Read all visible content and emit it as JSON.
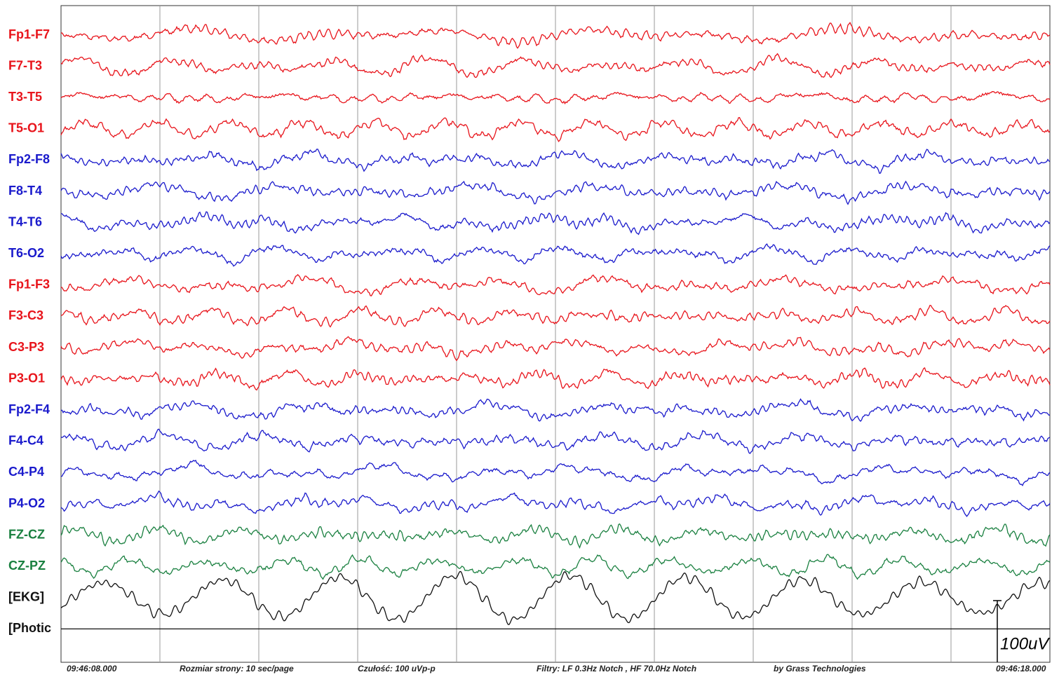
{
  "channels": [
    {
      "label": "Fp1-F7",
      "color": "#e8141b"
    },
    {
      "label": "F7-T3",
      "color": "#e8141b"
    },
    {
      "label": "T3-T5",
      "color": "#e8141b"
    },
    {
      "label": "T5-O1",
      "color": "#e8141b"
    },
    {
      "label": "Fp2-F8",
      "color": "#1a1acc"
    },
    {
      "label": "F8-T4",
      "color": "#1a1acc"
    },
    {
      "label": "T4-T6",
      "color": "#1a1acc"
    },
    {
      "label": "T6-O2",
      "color": "#1a1acc"
    },
    {
      "label": "Fp1-F3",
      "color": "#e8141b"
    },
    {
      "label": "F3-C3",
      "color": "#e8141b"
    },
    {
      "label": "C3-P3",
      "color": "#e8141b"
    },
    {
      "label": "P3-O1",
      "color": "#e8141b"
    },
    {
      "label": "Fp2-F4",
      "color": "#1a1acc"
    },
    {
      "label": "F4-C4",
      "color": "#1a1acc"
    },
    {
      "label": "C4-P4",
      "color": "#1a1acc"
    },
    {
      "label": "P4-O2",
      "color": "#1a1acc"
    },
    {
      "label": "FZ-CZ",
      "color": "#1a8040"
    },
    {
      "label": "CZ-PZ",
      "color": "#1a8040"
    },
    {
      "label": "[EKG]",
      "color": "#111111"
    },
    {
      "label": "[Photic",
      "color": "#111111"
    }
  ],
  "footer": {
    "start_time": "09:46:08.000",
    "page_size": "Rozmiar strony: 10 sec/page",
    "sensitivity": "Czułość:  100 uVp-p",
    "filters": "Filtry: LF  0.3Hz Notch , HF 70.0Hz Notch",
    "vendor": "by Grass Technologies",
    "end_time": "09:46:18.000"
  },
  "scale_label": "100uV"
}
